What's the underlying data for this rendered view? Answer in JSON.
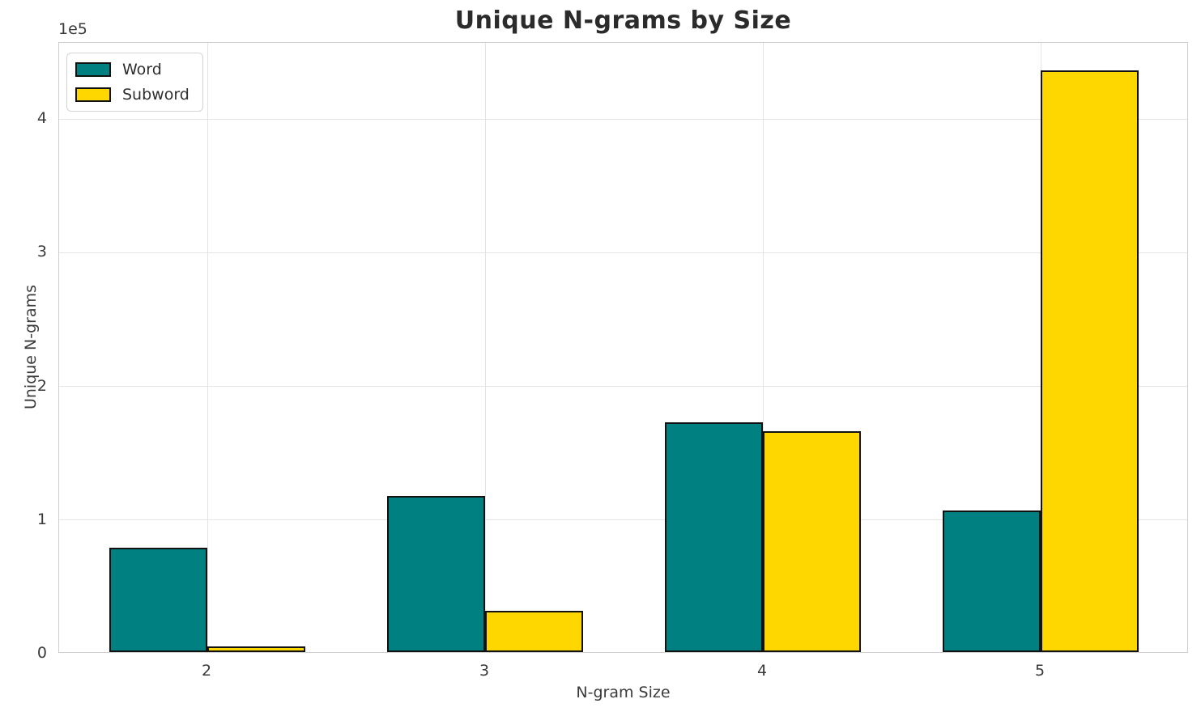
{
  "chart_data": {
    "type": "bar",
    "title": "Unique N-grams by Size",
    "xlabel": "N-gram Size",
    "ylabel": "Unique N-grams",
    "y_offset_label": "1e5",
    "categories": [
      "2",
      "3",
      "4",
      "5"
    ],
    "series": [
      {
        "name": "Word",
        "color": "#008080",
        "values": [
          78000,
          117000,
          172000,
          106000
        ]
      },
      {
        "name": "Subword",
        "color": "#FFD700",
        "values": [
          4000,
          31000,
          165000,
          435000
        ]
      }
    ],
    "ylim": [
      0,
      457000
    ],
    "yticks": {
      "values": [
        0,
        100000,
        200000,
        300000,
        400000
      ],
      "labels": [
        "0",
        "1",
        "2",
        "3",
        "4"
      ]
    },
    "grid": true,
    "legend_position": "upper left",
    "colors": {
      "bar_edge": "#111111",
      "gridline": "#e4e4e4",
      "spine": "#cfcfcf",
      "tick_text": "#3a3a3a",
      "title_text": "#2b2b2b"
    }
  }
}
